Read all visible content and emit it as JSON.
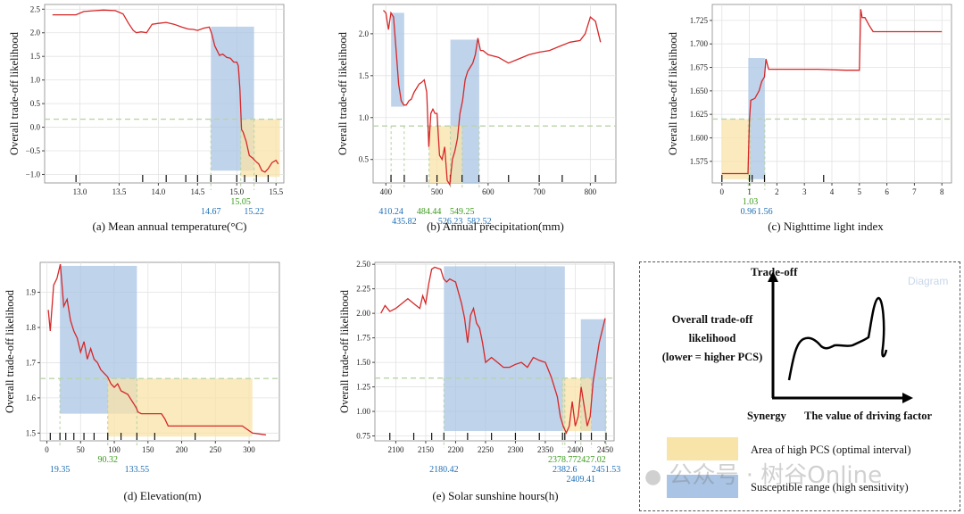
{
  "ylabel": "Overall trade-off likelihood",
  "watermark": "公众号 · 树谷Online",
  "colors": {
    "line": "#d62728",
    "blue_band": "#a9c4e4",
    "yellow_band": "#f8e3a8",
    "dashed": "#b9d3a8",
    "blue_text": "#1f6fb4",
    "green_text": "#3c9a1e",
    "rug": "#111111"
  },
  "chart_data": [
    {
      "id": "a",
      "type": "line",
      "caption": "(a) Mean annual temperature(°C)",
      "xlim": [
        12.55,
        15.6
      ],
      "ylim": [
        -1.18,
        2.6
      ],
      "xticks": [
        13.0,
        13.5,
        14.0,
        14.5,
        15.0,
        15.5
      ],
      "xtick_labels": [
        "13.0",
        "13.5",
        "14.0",
        "14.5",
        "15.0",
        "15.5"
      ],
      "yticks": [
        -1.0,
        -0.5,
        0.0,
        0.5,
        1.0,
        1.5,
        2.0,
        2.5
      ],
      "ytick_labels": [
        "−1.0",
        "−0.5",
        "0.0",
        "0.5",
        "1.0",
        "1.5",
        "2.0",
        "2.5"
      ],
      "threshold": 0.17,
      "rug": [
        12.95,
        13.8,
        14.1,
        14.35,
        14.5,
        14.67,
        15.0,
        15.1,
        15.25,
        15.4
      ],
      "blue_band": {
        "x": [
          14.67,
          15.22
        ],
        "y": [
          -0.92,
          2.13
        ]
      },
      "yellow_band": {
        "x": [
          15.05,
          15.55
        ],
        "y": [
          -1.05,
          0.17
        ]
      },
      "markers": [
        {
          "x": 14.67,
          "label": "14.67",
          "color": "blue",
          "row": 2
        },
        {
          "x": 15.05,
          "label": "15.05",
          "color": "green",
          "row": 1
        },
        {
          "x": 15.22,
          "label": "15.22",
          "color": "blue",
          "row": 2
        }
      ],
      "x": [
        12.65,
        12.8,
        12.95,
        13.05,
        13.2,
        13.3,
        13.45,
        13.55,
        13.62,
        13.68,
        13.72,
        13.78,
        13.85,
        13.92,
        14.0,
        14.1,
        14.2,
        14.3,
        14.38,
        14.45,
        14.5,
        14.58,
        14.65,
        14.68,
        14.72,
        14.78,
        14.82,
        14.87,
        14.92,
        14.96,
        15.0,
        15.02,
        15.04,
        15.06,
        15.08,
        15.12,
        15.16,
        15.2,
        15.24,
        15.28,
        15.32,
        15.36,
        15.4,
        15.45,
        15.5,
        15.53
      ],
      "y": [
        2.38,
        2.38,
        2.38,
        2.45,
        2.47,
        2.48,
        2.47,
        2.4,
        2.2,
        2.05,
        2.0,
        2.02,
        2.0,
        2.18,
        2.2,
        2.22,
        2.18,
        2.12,
        2.08,
        2.07,
        2.05,
        2.1,
        2.12,
        1.98,
        1.72,
        1.52,
        1.55,
        1.48,
        1.46,
        1.38,
        1.38,
        1.3,
        0.8,
        -0.05,
        -0.1,
        -0.3,
        -0.6,
        -0.65,
        -0.72,
        -0.78,
        -0.92,
        -0.95,
        -0.88,
        -0.75,
        -0.7,
        -0.78
      ]
    },
    {
      "id": "b",
      "type": "line",
      "caption": "(b) Annual precipitation(mm)",
      "xlim": [
        375,
        850
      ],
      "ylim": [
        0.22,
        2.35
      ],
      "xticks": [
        400,
        500,
        600,
        700,
        800
      ],
      "xtick_labels": [
        "400",
        "500",
        "600",
        "700",
        "800"
      ],
      "yticks": [
        0.5,
        1.0,
        1.5,
        2.0
      ],
      "ytick_labels": [
        "0.5",
        "1.0",
        "1.5",
        "2.0"
      ],
      "threshold": 0.9,
      "rug": [
        410,
        436,
        480,
        500,
        526,
        549,
        582,
        640,
        700,
        745,
        810
      ],
      "blue_band": {
        "x": [
          410.24,
          435.82
        ],
        "y": [
          1.13,
          2.25
        ]
      },
      "blue_band2": {
        "x": [
          526.23,
          582.52
        ],
        "y": [
          0.22,
          1.93
        ]
      },
      "yellow_band": {
        "x": [
          484.44,
          549.25
        ],
        "y": [
          0.22,
          0.9
        ]
      },
      "markers": [
        {
          "x": 410.24,
          "label": "410.24",
          "color": "blue",
          "row": 2
        },
        {
          "x": 435.82,
          "label": "435.82",
          "color": "blue",
          "row": 3
        },
        {
          "x": 484.44,
          "label": "484.44",
          "color": "green",
          "row": 2
        },
        {
          "x": 526.23,
          "label": "526.23",
          "color": "blue",
          "row": 3
        },
        {
          "x": 549.25,
          "label": "549.25",
          "color": "green",
          "row": 2
        },
        {
          "x": 582.52,
          "label": "582.52",
          "color": "blue",
          "row": 3
        }
      ],
      "x": [
        395,
        400,
        405,
        410,
        415,
        420,
        425,
        430,
        435,
        440,
        445,
        450,
        455,
        460,
        465,
        470,
        475,
        480,
        484,
        488,
        492,
        496,
        500,
        505,
        510,
        515,
        520,
        525,
        530,
        535,
        540,
        545,
        550,
        555,
        560,
        565,
        570,
        575,
        580,
        585,
        590,
        600,
        620,
        640,
        660,
        680,
        700,
        720,
        740,
        760,
        780,
        790,
        800,
        810,
        820
      ],
      "y": [
        2.28,
        2.25,
        2.05,
        2.25,
        2.2,
        1.8,
        1.4,
        1.2,
        1.15,
        1.15,
        1.2,
        1.22,
        1.3,
        1.35,
        1.4,
        1.42,
        1.45,
        1.3,
        0.65,
        1.05,
        1.1,
        1.05,
        1.05,
        0.55,
        0.5,
        0.65,
        0.25,
        0.2,
        0.5,
        0.6,
        0.75,
        1.05,
        1.2,
        1.45,
        1.55,
        1.6,
        1.65,
        1.75,
        1.95,
        1.8,
        1.8,
        1.75,
        1.72,
        1.65,
        1.7,
        1.75,
        1.78,
        1.8,
        1.85,
        1.9,
        1.92,
        2.0,
        2.2,
        2.15,
        1.9
      ]
    },
    {
      "id": "c",
      "type": "line",
      "caption": "(c) Nighttime light index",
      "xlim": [
        -0.35,
        8.35
      ],
      "ylim": [
        1.552,
        1.742
      ],
      "xticks": [
        0,
        1,
        2,
        3,
        4,
        5,
        6,
        7,
        8
      ],
      "xtick_labels": [
        "0",
        "1",
        "2",
        "3",
        "4",
        "5",
        "6",
        "7",
        "8"
      ],
      "yticks": [
        1.575,
        1.6,
        1.625,
        1.65,
        1.675,
        1.7,
        1.725
      ],
      "ytick_labels": [
        "1.575",
        "1.600",
        "1.625",
        "1.650",
        "1.675",
        "1.700",
        "1.725"
      ],
      "threshold": 1.62,
      "rug": [
        0,
        1,
        1.1,
        1.55,
        3.7
      ],
      "blue_band": {
        "x": [
          0.96,
          1.56
        ],
        "y": [
          1.556,
          1.685
        ]
      },
      "yellow_band": {
        "x": [
          0,
          1.03
        ],
        "y": [
          1.556,
          1.62
        ]
      },
      "markers": [
        {
          "x": 0.96,
          "label": "0.96",
          "color": "blue",
          "row": 2
        },
        {
          "x": 1.03,
          "label": "1.03",
          "color": "green",
          "row": 1
        },
        {
          "x": 1.56,
          "label": "1.56",
          "color": "blue",
          "row": 2
        }
      ],
      "x": [
        0,
        0.95,
        1.0,
        1.05,
        1.2,
        1.35,
        1.45,
        1.55,
        1.6,
        1.7,
        2.5,
        3.5,
        4.5,
        5.0,
        5.05,
        5.1,
        5.2,
        5.35,
        5.5,
        6.5,
        8.0
      ],
      "y": [
        1.562,
        1.562,
        1.618,
        1.64,
        1.642,
        1.65,
        1.66,
        1.665,
        1.684,
        1.673,
        1.673,
        1.673,
        1.672,
        1.672,
        1.737,
        1.728,
        1.728,
        1.72,
        1.713,
        1.713,
        1.713
      ]
    },
    {
      "id": "d",
      "type": "line",
      "caption": "(d) Elevation(m)",
      "xlim": [
        -10,
        345
      ],
      "ylim": [
        1.478,
        1.985
      ],
      "xticks": [
        0,
        50,
        100,
        150,
        200,
        250,
        300
      ],
      "xtick_labels": [
        "0",
        "50",
        "100",
        "150",
        "200",
        "250",
        "300"
      ],
      "yticks": [
        1.5,
        1.6,
        1.7,
        1.8,
        1.9
      ],
      "ytick_labels": [
        "1.5",
        "1.6",
        "1.7",
        "1.8",
        "1.9"
      ],
      "threshold": 1.655,
      "rug": [
        5,
        19.35,
        28,
        40,
        55,
        70,
        90.32,
        110,
        133.55,
        160,
        220
      ],
      "blue_band": {
        "x": [
          19.35,
          133.55
        ],
        "y": [
          1.555,
          1.975
        ]
      },
      "yellow_band": {
        "x": [
          90.32,
          305
        ],
        "y": [
          1.49,
          1.655
        ]
      },
      "markers": [
        {
          "x": 19.35,
          "label": "19.35",
          "color": "blue",
          "row": 2
        },
        {
          "x": 90.32,
          "label": "90.32",
          "color": "green",
          "row": 1
        },
        {
          "x": 133.55,
          "label": "133.55",
          "color": "blue",
          "row": 2
        }
      ],
      "x": [
        2,
        5,
        10,
        15,
        20,
        25,
        30,
        35,
        40,
        45,
        50,
        55,
        60,
        65,
        70,
        75,
        80,
        85,
        90,
        95,
        100,
        105,
        110,
        120,
        130,
        133,
        135,
        140,
        150,
        160,
        170,
        175,
        180,
        200,
        230,
        260,
        280,
        290,
        305,
        325
      ],
      "y": [
        1.85,
        1.79,
        1.92,
        1.94,
        1.98,
        1.86,
        1.88,
        1.82,
        1.79,
        1.77,
        1.73,
        1.76,
        1.71,
        1.74,
        1.71,
        1.7,
        1.68,
        1.67,
        1.66,
        1.64,
        1.63,
        1.64,
        1.62,
        1.61,
        1.58,
        1.57,
        1.56,
        1.555,
        1.555,
        1.555,
        1.555,
        1.54,
        1.52,
        1.52,
        1.52,
        1.52,
        1.52,
        1.52,
        1.5,
        1.495
      ]
    },
    {
      "id": "e",
      "type": "line",
      "caption": "(e) Solar sunshine hours(h)",
      "xlim": [
        2065,
        2465
      ],
      "ylim": [
        0.7,
        2.52
      ],
      "xticks": [
        2100,
        2150,
        2200,
        2250,
        2300,
        2350,
        2400,
        2450
      ],
      "xtick_labels": [
        "2100",
        "2150",
        "2200",
        "2250",
        "2300",
        "2350",
        "2400",
        "2450"
      ],
      "yticks": [
        0.75,
        1.0,
        1.25,
        1.5,
        1.75,
        2.0,
        2.25,
        2.5
      ],
      "ytick_labels": [
        "0.75",
        "1.00",
        "1.25",
        "1.50",
        "1.75",
        "2.00",
        "2.25",
        "2.50"
      ],
      "threshold": 1.34,
      "rug": [
        2090,
        2130,
        2160,
        2180.42,
        2220,
        2260,
        2300,
        2340,
        2378.77,
        2382.6,
        2409.41,
        2427.02,
        2451.53
      ],
      "blue_band": {
        "x": [
          2180.42,
          2382.6
        ],
        "y": [
          0.8,
          2.48
        ]
      },
      "blue_band2": {
        "x": [
          2409.41,
          2451.53
        ],
        "y": [
          0.8,
          1.94
        ]
      },
      "yellow_band": {
        "x": [
          2378.77,
          2427.02
        ],
        "y": [
          0.8,
          1.34
        ]
      },
      "markers": [
        {
          "x": 2180.42,
          "label": "2180.42",
          "color": "blue",
          "row": 2
        },
        {
          "x": 2378.77,
          "label": "2378.77",
          "color": "green",
          "row": 1
        },
        {
          "x": 2382.6,
          "label": "2382.6",
          "color": "blue",
          "row": 2
        },
        {
          "x": 2409.41,
          "label": "2409.41",
          "color": "blue",
          "row": 3
        },
        {
          "x": 2427.02,
          "label": "2427.02",
          "color": "green",
          "row": 1
        },
        {
          "x": 2451.53,
          "label": "2451.53",
          "color": "blue",
          "row": 2
        }
      ],
      "x": [
        2075,
        2082,
        2090,
        2100,
        2110,
        2120,
        2130,
        2140,
        2145,
        2150,
        2155,
        2160,
        2165,
        2170,
        2175,
        2180,
        2185,
        2190,
        2200,
        2210,
        2215,
        2220,
        2225,
        2230,
        2235,
        2240,
        2245,
        2250,
        2260,
        2270,
        2280,
        2290,
        2300,
        2310,
        2320,
        2330,
        2340,
        2350,
        2360,
        2370,
        2375,
        2380,
        2385,
        2390,
        2395,
        2400,
        2405,
        2410,
        2415,
        2420,
        2425,
        2430,
        2440,
        2450
      ],
      "y": [
        2.0,
        2.08,
        2.02,
        2.05,
        2.1,
        2.15,
        2.1,
        2.05,
        2.18,
        2.1,
        2.3,
        2.45,
        2.47,
        2.46,
        2.45,
        2.35,
        2.32,
        2.35,
        2.32,
        2.1,
        1.95,
        1.7,
        1.98,
        2.05,
        1.9,
        1.85,
        1.7,
        1.5,
        1.55,
        1.5,
        1.45,
        1.45,
        1.48,
        1.5,
        1.45,
        1.55,
        1.52,
        1.5,
        1.35,
        1.15,
        0.95,
        0.85,
        0.78,
        0.85,
        1.1,
        0.85,
        0.95,
        1.25,
        1.05,
        0.85,
        0.95,
        1.3,
        1.7,
        1.95
      ]
    }
  ],
  "diagram": {
    "tag": "Diagram",
    "y_title": "Trade-off",
    "y_label_lines": [
      "Overall trade-off",
      "likelihood",
      "(lower = higher PCS)"
    ],
    "origin_label": "Synergy",
    "x_label": "The value of driving factor",
    "legend": [
      {
        "label": "Area of high PCS (optimal interval)",
        "color": "#f8e3a8"
      },
      {
        "label": "Susceptible range (high sensitivity)",
        "color": "#a9c4e4"
      }
    ]
  }
}
